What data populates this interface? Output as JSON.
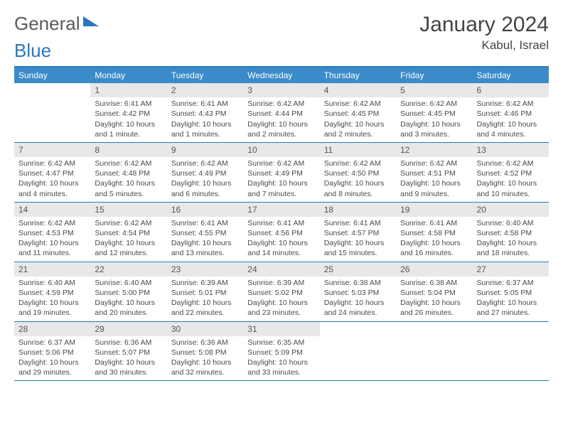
{
  "brand": {
    "part1": "General",
    "part2": "Blue"
  },
  "title": "January 2024",
  "location": "Kabul, Israel",
  "colors": {
    "accent": "#2a77bc",
    "header_bg": "#3b8bc9",
    "daynum_bg": "#e8e8e8",
    "text": "#4a4a4a"
  },
  "days_of_week": [
    "Sunday",
    "Monday",
    "Tuesday",
    "Wednesday",
    "Thursday",
    "Friday",
    "Saturday"
  ],
  "weeks": [
    [
      {
        "n": "",
        "sr": "",
        "ss": "",
        "dl": ""
      },
      {
        "n": "1",
        "sr": "Sunrise: 6:41 AM",
        "ss": "Sunset: 4:42 PM",
        "dl": "Daylight: 10 hours and 1 minute."
      },
      {
        "n": "2",
        "sr": "Sunrise: 6:41 AM",
        "ss": "Sunset: 4:43 PM",
        "dl": "Daylight: 10 hours and 1 minutes."
      },
      {
        "n": "3",
        "sr": "Sunrise: 6:42 AM",
        "ss": "Sunset: 4:44 PM",
        "dl": "Daylight: 10 hours and 2 minutes."
      },
      {
        "n": "4",
        "sr": "Sunrise: 6:42 AM",
        "ss": "Sunset: 4:45 PM",
        "dl": "Daylight: 10 hours and 2 minutes."
      },
      {
        "n": "5",
        "sr": "Sunrise: 6:42 AM",
        "ss": "Sunset: 4:45 PM",
        "dl": "Daylight: 10 hours and 3 minutes."
      },
      {
        "n": "6",
        "sr": "Sunrise: 6:42 AM",
        "ss": "Sunset: 4:46 PM",
        "dl": "Daylight: 10 hours and 4 minutes."
      }
    ],
    [
      {
        "n": "7",
        "sr": "Sunrise: 6:42 AM",
        "ss": "Sunset: 4:47 PM",
        "dl": "Daylight: 10 hours and 4 minutes."
      },
      {
        "n": "8",
        "sr": "Sunrise: 6:42 AM",
        "ss": "Sunset: 4:48 PM",
        "dl": "Daylight: 10 hours and 5 minutes."
      },
      {
        "n": "9",
        "sr": "Sunrise: 6:42 AM",
        "ss": "Sunset: 4:49 PM",
        "dl": "Daylight: 10 hours and 6 minutes."
      },
      {
        "n": "10",
        "sr": "Sunrise: 6:42 AM",
        "ss": "Sunset: 4:49 PM",
        "dl": "Daylight: 10 hours and 7 minutes."
      },
      {
        "n": "11",
        "sr": "Sunrise: 6:42 AM",
        "ss": "Sunset: 4:50 PM",
        "dl": "Daylight: 10 hours and 8 minutes."
      },
      {
        "n": "12",
        "sr": "Sunrise: 6:42 AM",
        "ss": "Sunset: 4:51 PM",
        "dl": "Daylight: 10 hours and 9 minutes."
      },
      {
        "n": "13",
        "sr": "Sunrise: 6:42 AM",
        "ss": "Sunset: 4:52 PM",
        "dl": "Daylight: 10 hours and 10 minutes."
      }
    ],
    [
      {
        "n": "14",
        "sr": "Sunrise: 6:42 AM",
        "ss": "Sunset: 4:53 PM",
        "dl": "Daylight: 10 hours and 11 minutes."
      },
      {
        "n": "15",
        "sr": "Sunrise: 6:42 AM",
        "ss": "Sunset: 4:54 PM",
        "dl": "Daylight: 10 hours and 12 minutes."
      },
      {
        "n": "16",
        "sr": "Sunrise: 6:41 AM",
        "ss": "Sunset: 4:55 PM",
        "dl": "Daylight: 10 hours and 13 minutes."
      },
      {
        "n": "17",
        "sr": "Sunrise: 6:41 AM",
        "ss": "Sunset: 4:56 PM",
        "dl": "Daylight: 10 hours and 14 minutes."
      },
      {
        "n": "18",
        "sr": "Sunrise: 6:41 AM",
        "ss": "Sunset: 4:57 PM",
        "dl": "Daylight: 10 hours and 15 minutes."
      },
      {
        "n": "19",
        "sr": "Sunrise: 6:41 AM",
        "ss": "Sunset: 4:58 PM",
        "dl": "Daylight: 10 hours and 16 minutes."
      },
      {
        "n": "20",
        "sr": "Sunrise: 6:40 AM",
        "ss": "Sunset: 4:58 PM",
        "dl": "Daylight: 10 hours and 18 minutes."
      }
    ],
    [
      {
        "n": "21",
        "sr": "Sunrise: 6:40 AM",
        "ss": "Sunset: 4:59 PM",
        "dl": "Daylight: 10 hours and 19 minutes."
      },
      {
        "n": "22",
        "sr": "Sunrise: 6:40 AM",
        "ss": "Sunset: 5:00 PM",
        "dl": "Daylight: 10 hours and 20 minutes."
      },
      {
        "n": "23",
        "sr": "Sunrise: 6:39 AM",
        "ss": "Sunset: 5:01 PM",
        "dl": "Daylight: 10 hours and 22 minutes."
      },
      {
        "n": "24",
        "sr": "Sunrise: 6:39 AM",
        "ss": "Sunset: 5:02 PM",
        "dl": "Daylight: 10 hours and 23 minutes."
      },
      {
        "n": "25",
        "sr": "Sunrise: 6:38 AM",
        "ss": "Sunset: 5:03 PM",
        "dl": "Daylight: 10 hours and 24 minutes."
      },
      {
        "n": "26",
        "sr": "Sunrise: 6:38 AM",
        "ss": "Sunset: 5:04 PM",
        "dl": "Daylight: 10 hours and 26 minutes."
      },
      {
        "n": "27",
        "sr": "Sunrise: 6:37 AM",
        "ss": "Sunset: 5:05 PM",
        "dl": "Daylight: 10 hours and 27 minutes."
      }
    ],
    [
      {
        "n": "28",
        "sr": "Sunrise: 6:37 AM",
        "ss": "Sunset: 5:06 PM",
        "dl": "Daylight: 10 hours and 29 minutes."
      },
      {
        "n": "29",
        "sr": "Sunrise: 6:36 AM",
        "ss": "Sunset: 5:07 PM",
        "dl": "Daylight: 10 hours and 30 minutes."
      },
      {
        "n": "30",
        "sr": "Sunrise: 6:36 AM",
        "ss": "Sunset: 5:08 PM",
        "dl": "Daylight: 10 hours and 32 minutes."
      },
      {
        "n": "31",
        "sr": "Sunrise: 6:35 AM",
        "ss": "Sunset: 5:09 PM",
        "dl": "Daylight: 10 hours and 33 minutes."
      },
      {
        "n": "",
        "sr": "",
        "ss": "",
        "dl": ""
      },
      {
        "n": "",
        "sr": "",
        "ss": "",
        "dl": ""
      },
      {
        "n": "",
        "sr": "",
        "ss": "",
        "dl": ""
      }
    ]
  ]
}
